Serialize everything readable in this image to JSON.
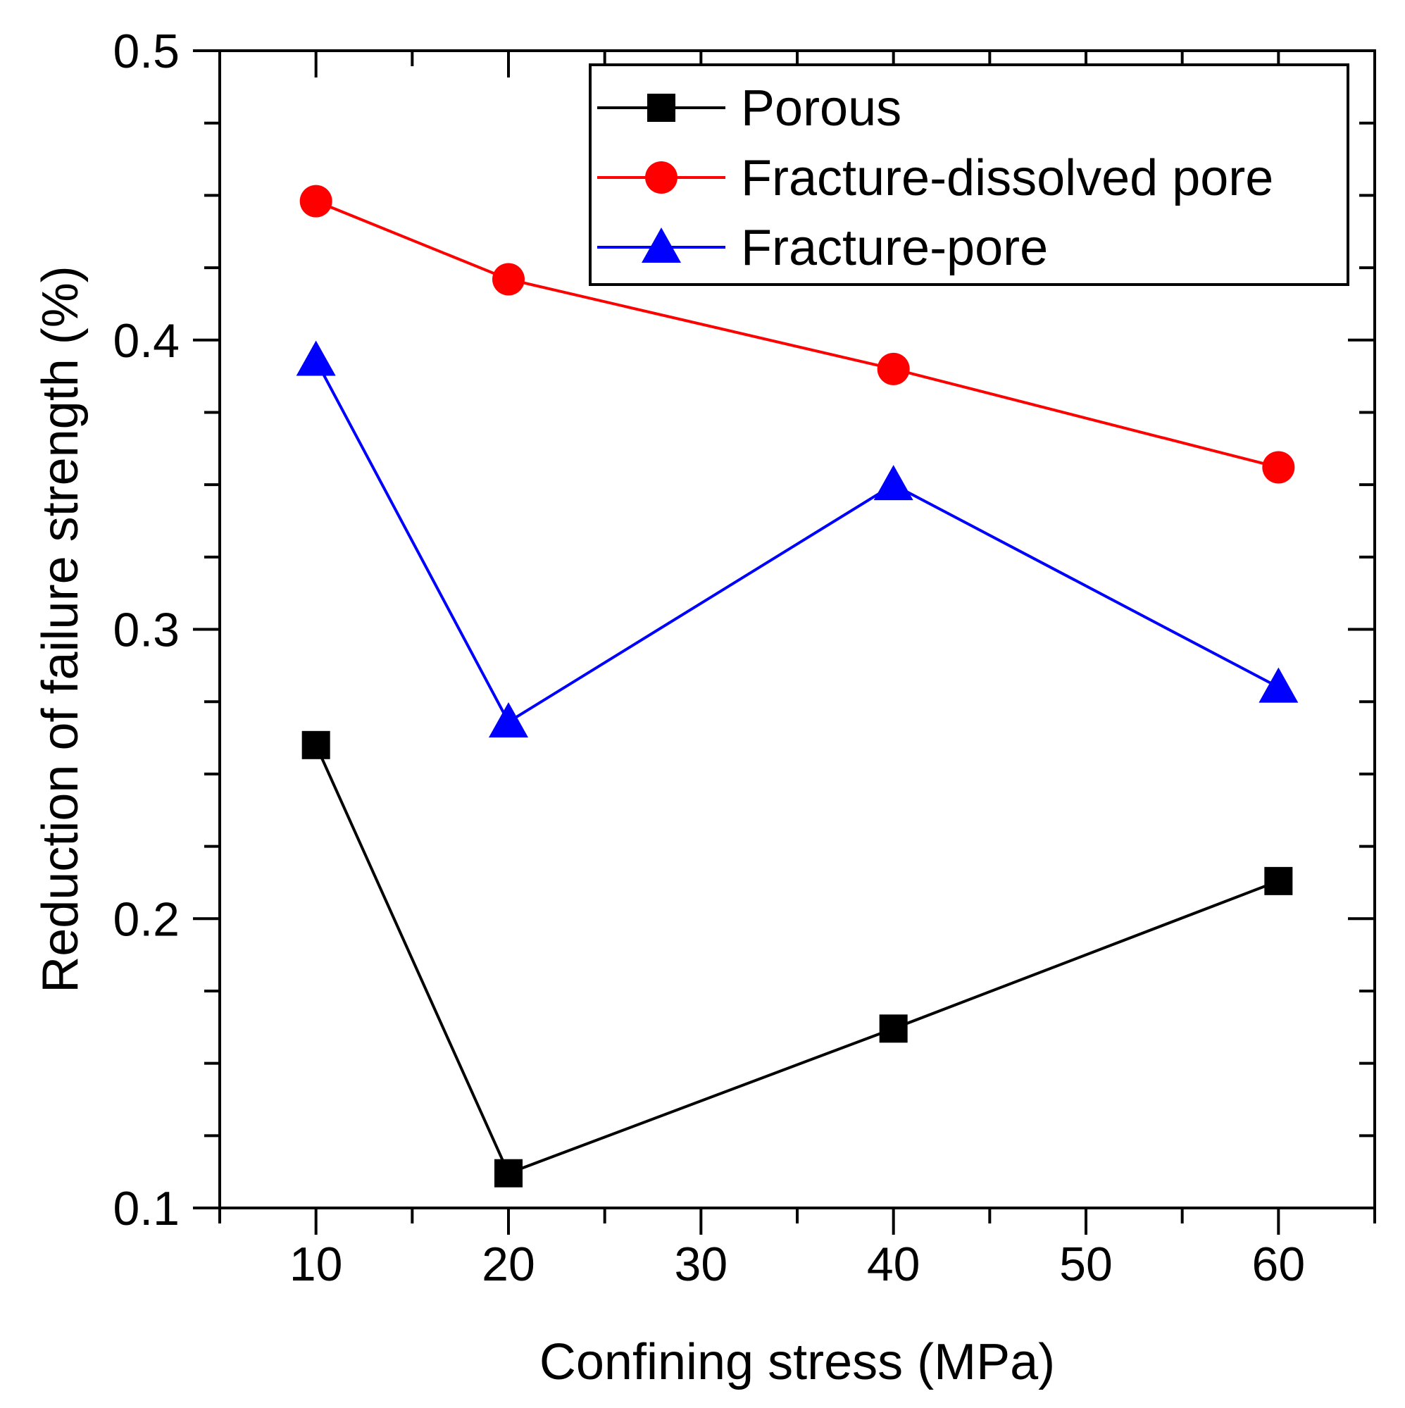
{
  "chart_data": {
    "type": "line",
    "title": "",
    "xlabel": "Confining stress (MPa)",
    "ylabel": "Reduction of failure strength (%)",
    "xlim": [
      5,
      65
    ],
    "ylim": [
      0.1,
      0.5
    ],
    "xticks": [
      10,
      20,
      30,
      40,
      50,
      60
    ],
    "xtick_labels": [
      "10",
      "20",
      "30",
      "40",
      "50",
      "60"
    ],
    "yticks": [
      0.1,
      0.2,
      0.3,
      0.4,
      0.5
    ],
    "ytick_labels": [
      "0.1",
      "0.2",
      "0.3",
      "0.4",
      "0.5"
    ],
    "legend_position": "top-right",
    "series": [
      {
        "name": "Porous",
        "color": "#000000",
        "marker": "square",
        "x": [
          10,
          20,
          40,
          60
        ],
        "values": [
          0.26,
          0.112,
          0.162,
          0.213
        ]
      },
      {
        "name": "Fracture-dissolved pore",
        "color": "#ff0000",
        "marker": "circle",
        "x": [
          10,
          20,
          40,
          60
        ],
        "values": [
          0.448,
          0.421,
          0.39,
          0.356
        ]
      },
      {
        "name": "Fracture-pore",
        "color": "#0000ff",
        "marker": "triangle",
        "x": [
          10,
          20,
          40,
          60
        ],
        "values": [
          0.393,
          0.268,
          0.35,
          0.28
        ]
      }
    ]
  }
}
